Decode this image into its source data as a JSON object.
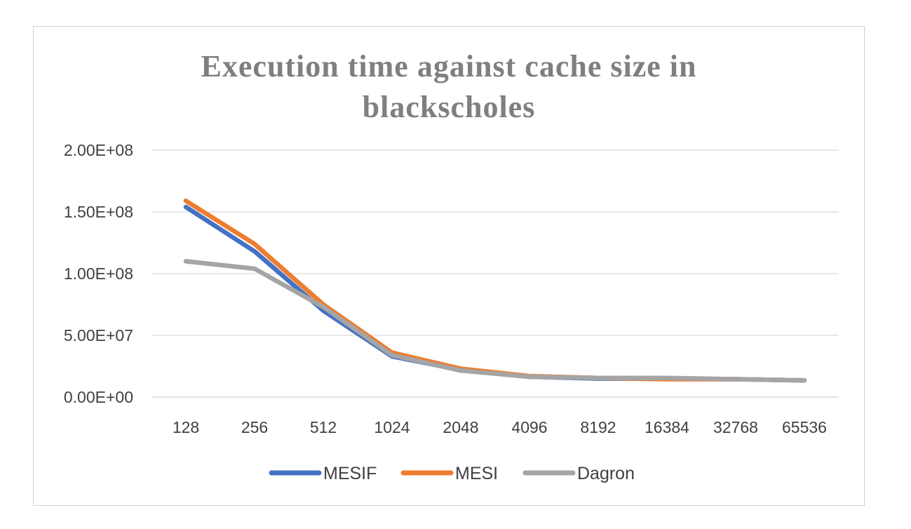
{
  "chart_data": {
    "type": "line",
    "title_line1": "Execution time against cache size in",
    "title_line2": "blackscholes",
    "categories": [
      "128",
      "256",
      "512",
      "1024",
      "2048",
      "4096",
      "8192",
      "16384",
      "32768",
      "65536"
    ],
    "y_ticks": [
      "0.00E+00",
      "5.00E+07",
      "1.00E+08",
      "1.50E+08",
      "2.00E+08"
    ],
    "ylim": [
      0,
      200000000
    ],
    "grid": true,
    "legend_position": "bottom",
    "series": [
      {
        "name": "MESIF",
        "color": "#4472C4",
        "values": [
          154000000,
          118000000,
          70000000,
          33000000,
          22000000,
          16500000,
          15000000,
          15000000,
          14500000,
          13500000
        ]
      },
      {
        "name": "MESI",
        "color": "#ED7D31",
        "values": [
          159000000,
          124000000,
          75000000,
          36000000,
          23000000,
          17000000,
          15500000,
          14500000,
          14500000,
          13500000
        ]
      },
      {
        "name": "Dagron",
        "color": "#A5A5A5",
        "values": [
          110000000,
          104000000,
          73000000,
          34000000,
          21500000,
          16500000,
          15500000,
          15500000,
          14500000,
          13500000
        ]
      }
    ]
  }
}
